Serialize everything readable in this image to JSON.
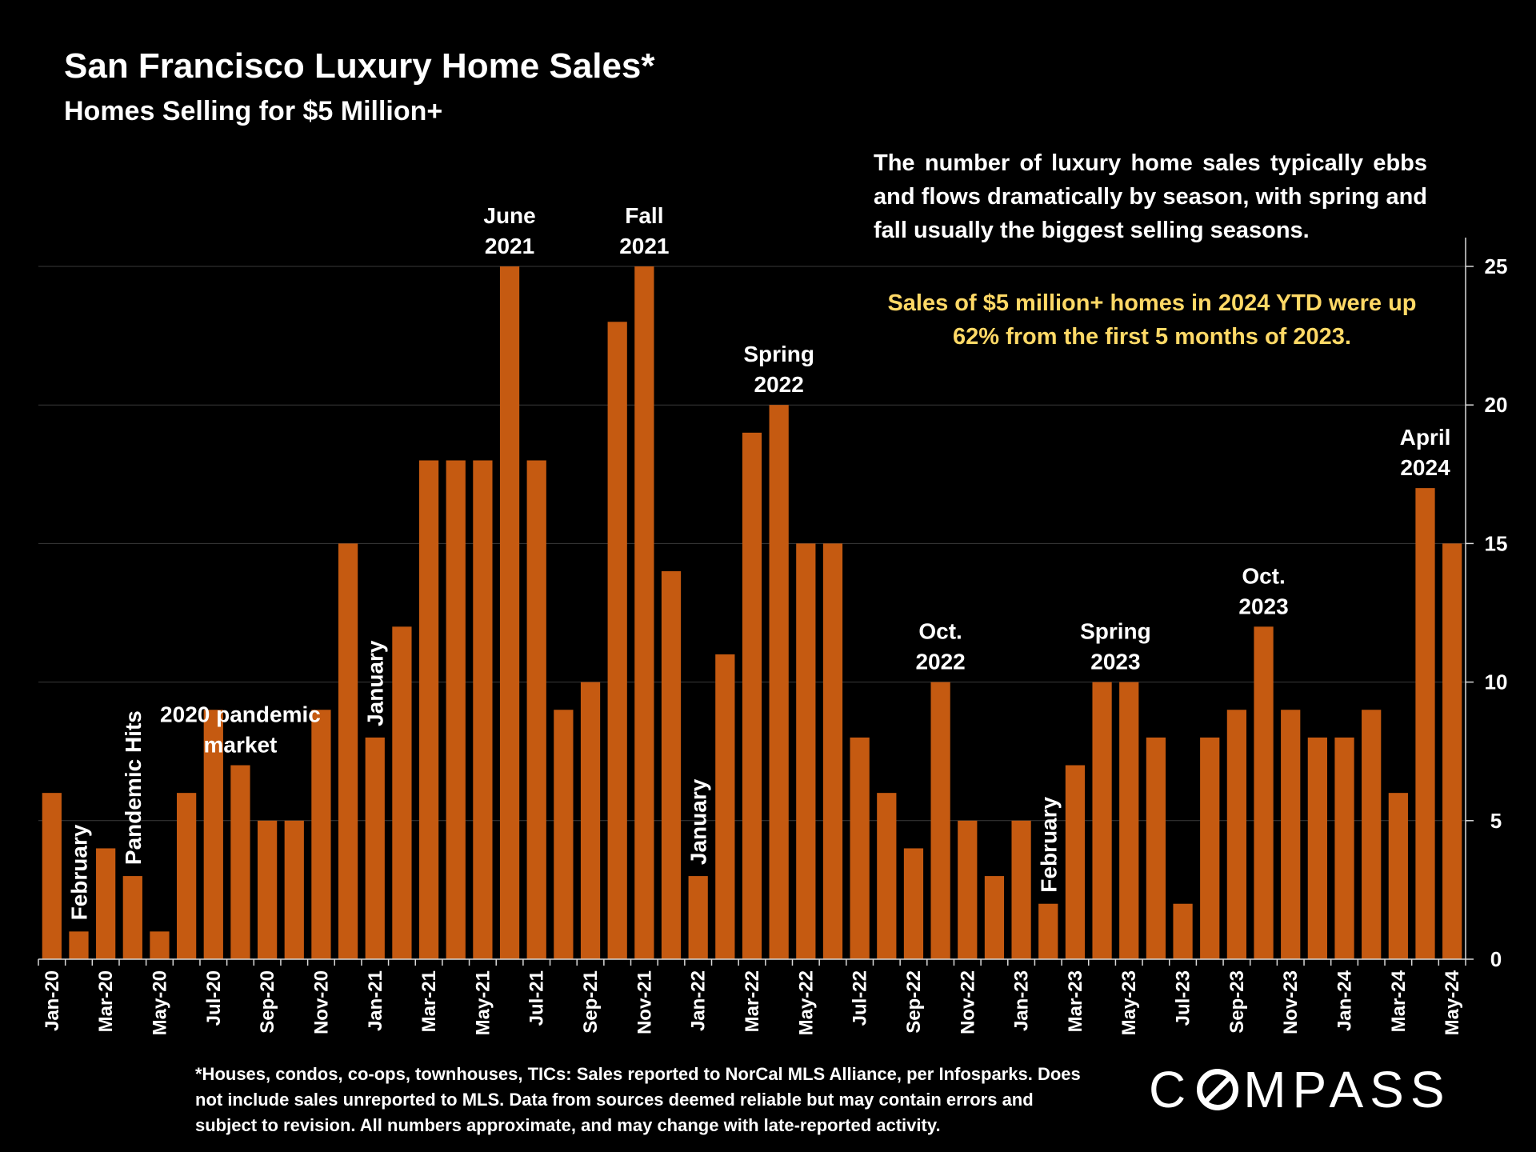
{
  "header": {
    "title": "San Francisco Luxury Home Sales*",
    "subtitle": "Homes Selling for $5 Million+"
  },
  "notes": {
    "season_text": "The number of luxury home sales typically ebbs and flows dramatically by season, with spring and fall usually the biggest selling seasons.",
    "highlight_text": "Sales of $5 million+ homes in 2024 YTD were up 62% from the first 5 months of 2023."
  },
  "footnote": "*Houses, condos, co-ops, townhouses, TICs:  Sales reported to NorCal MLS Alliance, per Infosparks. Does not include sales unreported to MLS. Data from sources deemed reliable but may contain errors and subject to revision.  All numbers approximate, and may change with late-reported activity.",
  "logo": {
    "left": "C",
    "right": "MPASS"
  },
  "colors": {
    "bar": "#c55a11",
    "highlight": "#ffd966",
    "background": "#000000"
  },
  "chart_data": {
    "type": "bar",
    "title": "San Francisco Luxury Home Sales*",
    "ylim": [
      0,
      25
    ],
    "yticks": [
      0,
      5,
      10,
      15,
      20,
      25
    ],
    "grid": true,
    "categories": [
      "Jan-20",
      "Feb-20",
      "Mar-20",
      "Apr-20",
      "May-20",
      "Jun-20",
      "Jul-20",
      "Aug-20",
      "Sep-20",
      "Oct-20",
      "Nov-20",
      "Dec-20",
      "Jan-21",
      "Feb-21",
      "Mar-21",
      "Apr-21",
      "May-21",
      "Jun-21",
      "Jul-21",
      "Aug-21",
      "Sep-21",
      "Oct-21",
      "Nov-21",
      "Dec-21",
      "Jan-22",
      "Feb-22",
      "Mar-22",
      "Apr-22",
      "May-22",
      "Jun-22",
      "Jul-22",
      "Aug-22",
      "Sep-22",
      "Oct-22",
      "Nov-22",
      "Dec-22",
      "Jan-23",
      "Feb-23",
      "Mar-23",
      "Apr-23",
      "May-23",
      "Jun-23",
      "Jul-23",
      "Aug-23",
      "Sep-23",
      "Oct-23",
      "Nov-23",
      "Dec-23",
      "Jan-24",
      "Feb-24",
      "Mar-24",
      "Apr-24",
      "May-24"
    ],
    "tick_labels": [
      "Jan-20",
      "Mar-20",
      "May-20",
      "Jul-20",
      "Sep-20",
      "Nov-20",
      "Jan-21",
      "Mar-21",
      "May-21",
      "Jul-21",
      "Sep-21",
      "Nov-21",
      "Jan-22",
      "Mar-22",
      "May-22",
      "Jul-22",
      "Sep-22",
      "Nov-22",
      "Jan-23",
      "Mar-23",
      "May-23",
      "Jul-23",
      "Sep-23",
      "Nov-23",
      "Jan-24",
      "Mar-24",
      "May-24"
    ],
    "values": [
      6,
      1,
      4,
      3,
      1,
      6,
      9,
      7,
      5,
      5,
      9,
      15,
      8,
      12,
      18,
      18,
      18,
      25,
      18,
      9,
      10,
      23,
      25,
      14,
      3,
      11,
      19,
      20,
      15,
      15,
      8,
      6,
      4,
      10,
      5,
      3,
      5,
      2,
      7,
      10,
      10,
      8,
      2,
      8,
      9,
      12,
      9,
      8,
      8,
      9,
      6,
      17,
      15
    ],
    "annotations": [
      {
        "index": 1,
        "lines": [
          "February"
        ],
        "vertical": true
      },
      {
        "index": 3,
        "lines": [
          "Pandemic Hits"
        ],
        "vertical": true
      },
      {
        "index": 7,
        "lines": [
          "2020 pandemic",
          "market"
        ],
        "vertical": false
      },
      {
        "index": 12,
        "lines": [
          "January"
        ],
        "vertical": true
      },
      {
        "index": 17,
        "lines": [
          "June",
          "2021"
        ],
        "vertical": false
      },
      {
        "index": 22,
        "lines": [
          "Fall",
          "2021"
        ],
        "vertical": false
      },
      {
        "index": 24,
        "lines": [
          "January"
        ],
        "vertical": true
      },
      {
        "index": 27,
        "lines": [
          "Spring",
          "2022"
        ],
        "vertical": false
      },
      {
        "index": 33,
        "lines": [
          "Oct.",
          "2022"
        ],
        "vertical": false
      },
      {
        "index": 37,
        "lines": [
          "February"
        ],
        "vertical": true
      },
      {
        "index": 39.5,
        "lines": [
          "Spring",
          "2023"
        ],
        "vertical": false
      },
      {
        "index": 45,
        "lines": [
          "Oct.",
          "2023"
        ],
        "vertical": false
      },
      {
        "index": 51,
        "lines": [
          "April",
          "2024"
        ],
        "vertical": false
      }
    ]
  }
}
